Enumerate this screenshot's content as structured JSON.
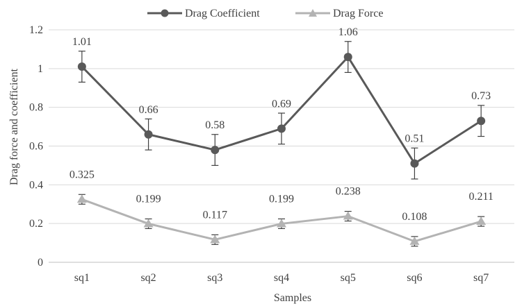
{
  "chart_data": {
    "type": "line",
    "title": "",
    "xlabel": "Samples",
    "ylabel": "Drag force and coefficient",
    "categories": [
      "sq1",
      "sq2",
      "sq3",
      "sq4",
      "sq5",
      "sq6",
      "sq7"
    ],
    "ylim": [
      0,
      1.2
    ],
    "yticks": [
      "0",
      "0.2",
      "0.4",
      "0.6",
      "0.8",
      "1",
      "1.2"
    ],
    "grid": true,
    "legend_position": "top-center",
    "series": [
      {
        "name": "Drag Coefficient",
        "values": [
          1.01,
          0.66,
          0.58,
          0.69,
          1.06,
          0.51,
          0.73
        ],
        "labels": [
          "1.01",
          "0.66",
          "0.58",
          "0.69",
          "1.06",
          "0.51",
          "0.73"
        ],
        "error": [
          0.08,
          0.08,
          0.08,
          0.08,
          0.08,
          0.08,
          0.08
        ],
        "marker": "circle",
        "color": "#595959"
      },
      {
        "name": "Drag Force",
        "values": [
          0.325,
          0.199,
          0.117,
          0.199,
          0.238,
          0.108,
          0.211
        ],
        "labels": [
          "0.325",
          "0.199",
          "0.117",
          "0.199",
          "0.238",
          "0.108",
          "0.211"
        ],
        "error": [
          0.025,
          0.025,
          0.025,
          0.025,
          0.025,
          0.025,
          0.025
        ],
        "marker": "triangle",
        "color": "#b3b3b3"
      }
    ]
  }
}
